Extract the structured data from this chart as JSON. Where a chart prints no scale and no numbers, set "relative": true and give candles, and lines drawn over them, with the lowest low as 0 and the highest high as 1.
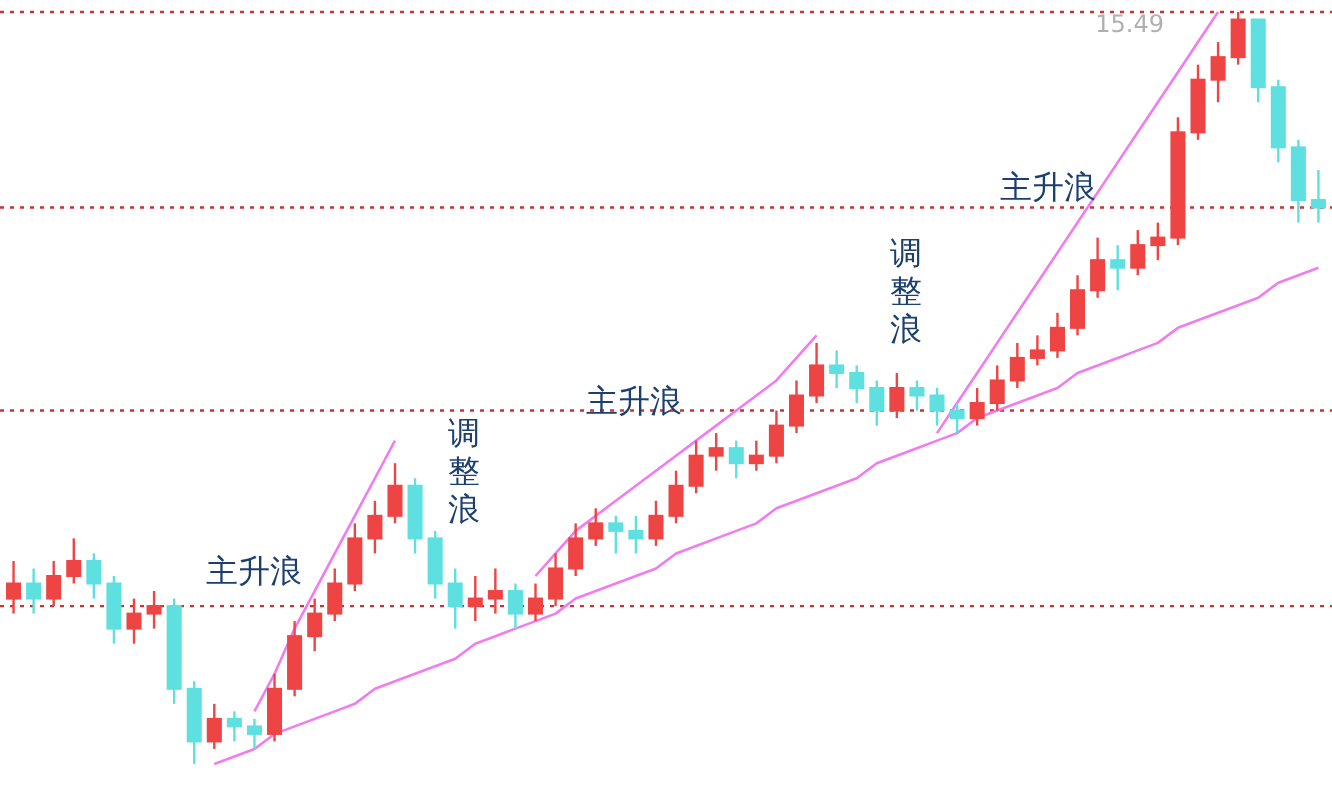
{
  "chart_data": {
    "type": "candlestick",
    "relative": true,
    "categories": [
      null,
      null,
      null,
      null,
      null,
      null,
      null,
      null,
      null,
      null,
      null,
      null,
      null,
      null,
      null,
      null,
      null,
      null,
      null,
      null,
      null,
      null,
      null,
      null,
      null,
      null,
      null,
      null,
      null,
      null,
      null,
      null,
      null,
      null,
      null,
      null,
      null,
      null,
      null,
      null,
      null,
      null,
      null,
      null,
      null,
      null,
      null,
      null,
      null,
      null,
      null,
      null,
      null,
      null,
      null,
      null,
      null,
      null,
      null,
      null,
      null,
      null,
      null,
      null,
      null,
      null
    ],
    "ohlc": [
      [
        0.22,
        0.27,
        0.2,
        0.24
      ],
      [
        0.24,
        0.26,
        0.2,
        0.22
      ],
      [
        0.22,
        0.27,
        0.21,
        0.25
      ],
      [
        0.25,
        0.3,
        0.24,
        0.27
      ],
      [
        0.27,
        0.28,
        0.22,
        0.24
      ],
      [
        0.24,
        0.25,
        0.16,
        0.18
      ],
      [
        0.18,
        0.22,
        0.16,
        0.2
      ],
      [
        0.2,
        0.23,
        0.18,
        0.21
      ],
      [
        0.21,
        0.22,
        0.08,
        0.1
      ],
      [
        0.1,
        0.11,
        0.0,
        0.03
      ],
      [
        0.03,
        0.08,
        0.02,
        0.06
      ],
      [
        0.06,
        0.07,
        0.03,
        0.05
      ],
      [
        0.05,
        0.06,
        0.02,
        0.04
      ],
      [
        0.04,
        0.12,
        0.03,
        0.1
      ],
      [
        0.1,
        0.19,
        0.09,
        0.17
      ],
      [
        0.17,
        0.22,
        0.15,
        0.2
      ],
      [
        0.2,
        0.26,
        0.19,
        0.24
      ],
      [
        0.24,
        0.32,
        0.23,
        0.3
      ],
      [
        0.3,
        0.35,
        0.28,
        0.33
      ],
      [
        0.33,
        0.4,
        0.32,
        0.37
      ],
      [
        0.37,
        0.38,
        0.28,
        0.3
      ],
      [
        0.3,
        0.31,
        0.22,
        0.24
      ],
      [
        0.24,
        0.26,
        0.18,
        0.21
      ],
      [
        0.21,
        0.25,
        0.19,
        0.22
      ],
      [
        0.22,
        0.26,
        0.2,
        0.23
      ],
      [
        0.23,
        0.24,
        0.18,
        0.2
      ],
      [
        0.2,
        0.24,
        0.19,
        0.22
      ],
      [
        0.22,
        0.28,
        0.21,
        0.26
      ],
      [
        0.26,
        0.32,
        0.25,
        0.3
      ],
      [
        0.3,
        0.34,
        0.29,
        0.32
      ],
      [
        0.32,
        0.33,
        0.28,
        0.31
      ],
      [
        0.31,
        0.33,
        0.28,
        0.3
      ],
      [
        0.3,
        0.35,
        0.29,
        0.33
      ],
      [
        0.33,
        0.39,
        0.32,
        0.37
      ],
      [
        0.37,
        0.43,
        0.36,
        0.41
      ],
      [
        0.41,
        0.44,
        0.39,
        0.42
      ],
      [
        0.42,
        0.43,
        0.38,
        0.4
      ],
      [
        0.4,
        0.43,
        0.39,
        0.41
      ],
      [
        0.41,
        0.47,
        0.4,
        0.45
      ],
      [
        0.45,
        0.51,
        0.44,
        0.49
      ],
      [
        0.49,
        0.56,
        0.48,
        0.53
      ],
      [
        0.53,
        0.55,
        0.5,
        0.52
      ],
      [
        0.52,
        0.53,
        0.48,
        0.5
      ],
      [
        0.5,
        0.51,
        0.45,
        0.47
      ],
      [
        0.47,
        0.52,
        0.46,
        0.5
      ],
      [
        0.5,
        0.51,
        0.47,
        0.49
      ],
      [
        0.49,
        0.5,
        0.45,
        0.47
      ],
      [
        0.47,
        0.48,
        0.44,
        0.46
      ],
      [
        0.46,
        0.5,
        0.45,
        0.48
      ],
      [
        0.48,
        0.53,
        0.47,
        0.51
      ],
      [
        0.51,
        0.56,
        0.5,
        0.54
      ],
      [
        0.54,
        0.57,
        0.53,
        0.55
      ],
      [
        0.55,
        0.6,
        0.54,
        0.58
      ],
      [
        0.58,
        0.65,
        0.57,
        0.63
      ],
      [
        0.63,
        0.7,
        0.62,
        0.67
      ],
      [
        0.67,
        0.69,
        0.63,
        0.66
      ],
      [
        0.66,
        0.71,
        0.65,
        0.69
      ],
      [
        0.69,
        0.72,
        0.67,
        0.7
      ],
      [
        0.7,
        0.86,
        0.69,
        0.84
      ],
      [
        0.84,
        0.93,
        0.83,
        0.91
      ],
      [
        0.91,
        0.96,
        0.88,
        0.94
      ],
      [
        0.94,
        1.0,
        0.93,
        0.99
      ],
      [
        0.99,
        0.99,
        0.88,
        0.9
      ],
      [
        0.9,
        0.91,
        0.8,
        0.82
      ],
      [
        0.82,
        0.83,
        0.72,
        0.75
      ],
      [
        0.75,
        0.79,
        0.72,
        0.74
      ]
    ],
    "colors": [
      "#ee4444",
      "#5ee0e0",
      "#ee4444",
      "#ee4444",
      "#5ee0e0",
      "#5ee0e0",
      "#ee4444",
      "#ee4444",
      "#5ee0e0",
      "#5ee0e0",
      "#ee4444",
      "#5ee0e0",
      "#5ee0e0",
      "#ee4444",
      "#ee4444",
      "#ee4444",
      "#ee4444",
      "#ee4444",
      "#ee4444",
      "#ee4444",
      "#5ee0e0",
      "#5ee0e0",
      "#5ee0e0",
      "#ee4444",
      "#ee4444",
      "#5ee0e0",
      "#ee4444",
      "#ee4444",
      "#ee4444",
      "#ee4444",
      "#5ee0e0",
      "#5ee0e0",
      "#ee4444",
      "#ee4444",
      "#ee4444",
      "#ee4444",
      "#5ee0e0",
      "#ee4444",
      "#ee4444",
      "#ee4444",
      "#ee4444",
      "#5ee0e0",
      "#5ee0e0",
      "#5ee0e0",
      "#ee4444",
      "#5ee0e0",
      "#5ee0e0",
      "#5ee0e0",
      "#ee4444",
      "#ee4444",
      "#ee4444",
      "#ee4444",
      "#ee4444",
      "#ee4444",
      "#ee4444",
      "#5ee0e0",
      "#ee4444",
      "#ee4444",
      "#ee4444",
      "#ee4444",
      "#ee4444",
      "#ee4444",
      "#5ee0e0",
      "#5ee0e0",
      "#5ee0e0",
      "#5ee0e0"
    ],
    "series": [
      {
        "type": "line",
        "color": "#f07cf0",
        "values": [
          null,
          null,
          null,
          null,
          null,
          null,
          null,
          null,
          null,
          null,
          null,
          null,
          0.07,
          0.12,
          0.18,
          0.23,
          0.28,
          0.33,
          0.38,
          0.43,
          null,
          null,
          null,
          null,
          null,
          null,
          null,
          null,
          null,
          null,
          null,
          null,
          null,
          null,
          null,
          null,
          null,
          null,
          null,
          null,
          null,
          null,
          null,
          null,
          null,
          null,
          null,
          null,
          null,
          null,
          null,
          null,
          null,
          null,
          null,
          null,
          null,
          null,
          null,
          null,
          null,
          null,
          null,
          null,
          null,
          null
        ]
      },
      {
        "type": "line",
        "color": "#f07cf0",
        "values": [
          null,
          null,
          null,
          null,
          null,
          null,
          null,
          null,
          null,
          null,
          null,
          null,
          null,
          null,
          null,
          null,
          null,
          null,
          null,
          null,
          null,
          null,
          null,
          null,
          null,
          null,
          0.25,
          0.28,
          0.31,
          0.33,
          0.35,
          0.37,
          0.39,
          0.41,
          0.43,
          0.45,
          0.47,
          0.49,
          0.51,
          0.54,
          0.57,
          null,
          null,
          null,
          null,
          null,
          null,
          null,
          null,
          null,
          null,
          null,
          null,
          null,
          null,
          null,
          null,
          null,
          null,
          null,
          null,
          null,
          null,
          null,
          null,
          null
        ]
      },
      {
        "type": "line",
        "color": "#f07cf0",
        "values": [
          null,
          null,
          null,
          null,
          null,
          null,
          null,
          null,
          null,
          null,
          null,
          null,
          null,
          null,
          null,
          null,
          null,
          null,
          null,
          null,
          null,
          null,
          null,
          null,
          null,
          null,
          null,
          null,
          null,
          null,
          null,
          null,
          null,
          null,
          null,
          null,
          null,
          null,
          null,
          null,
          null,
          null,
          null,
          null,
          null,
          null,
          0.44,
          0.48,
          0.52,
          0.56,
          0.6,
          0.64,
          0.68,
          0.72,
          0.76,
          0.8,
          0.84,
          0.88,
          0.92,
          0.96,
          1.0,
          null,
          null,
          null,
          null,
          null
        ]
      },
      {
        "type": "line",
        "color": "#f07cf0",
        "values": [
          null,
          null,
          null,
          null,
          null,
          null,
          null,
          null,
          null,
          null,
          0.0,
          0.01,
          0.02,
          0.04,
          0.05,
          0.06,
          0.07,
          0.08,
          0.1,
          0.11,
          0.12,
          0.13,
          0.14,
          0.16,
          0.17,
          0.18,
          0.19,
          0.2,
          0.22,
          0.23,
          0.24,
          0.25,
          0.26,
          0.28,
          0.29,
          0.3,
          0.31,
          0.32,
          0.34,
          0.35,
          0.36,
          0.37,
          0.38,
          0.4,
          0.41,
          0.42,
          0.43,
          0.44,
          0.46,
          0.47,
          0.48,
          0.49,
          0.5,
          0.52,
          0.53,
          0.54,
          0.55,
          0.56,
          0.58,
          0.59,
          0.6,
          0.61,
          0.62,
          0.64,
          0.65,
          0.66
        ]
      }
    ],
    "ref_lines": [
      {
        "axis": "y",
        "value": 1.0,
        "color": "#cc3333",
        "line_style": "dotted"
      },
      {
        "axis": "y",
        "value": 0.74,
        "color": "#cc3333",
        "line_style": "dotted"
      },
      {
        "axis": "y",
        "value": 0.47,
        "color": "#cc3333",
        "line_style": "dotted"
      },
      {
        "axis": "y",
        "value": 0.21,
        "color": "#cc3333",
        "line_style": "dotted"
      }
    ],
    "annotations": [
      "主升浪",
      "调整浪",
      "主升浪",
      "调整浪",
      "主升浪",
      "15.49"
    ]
  }
}
